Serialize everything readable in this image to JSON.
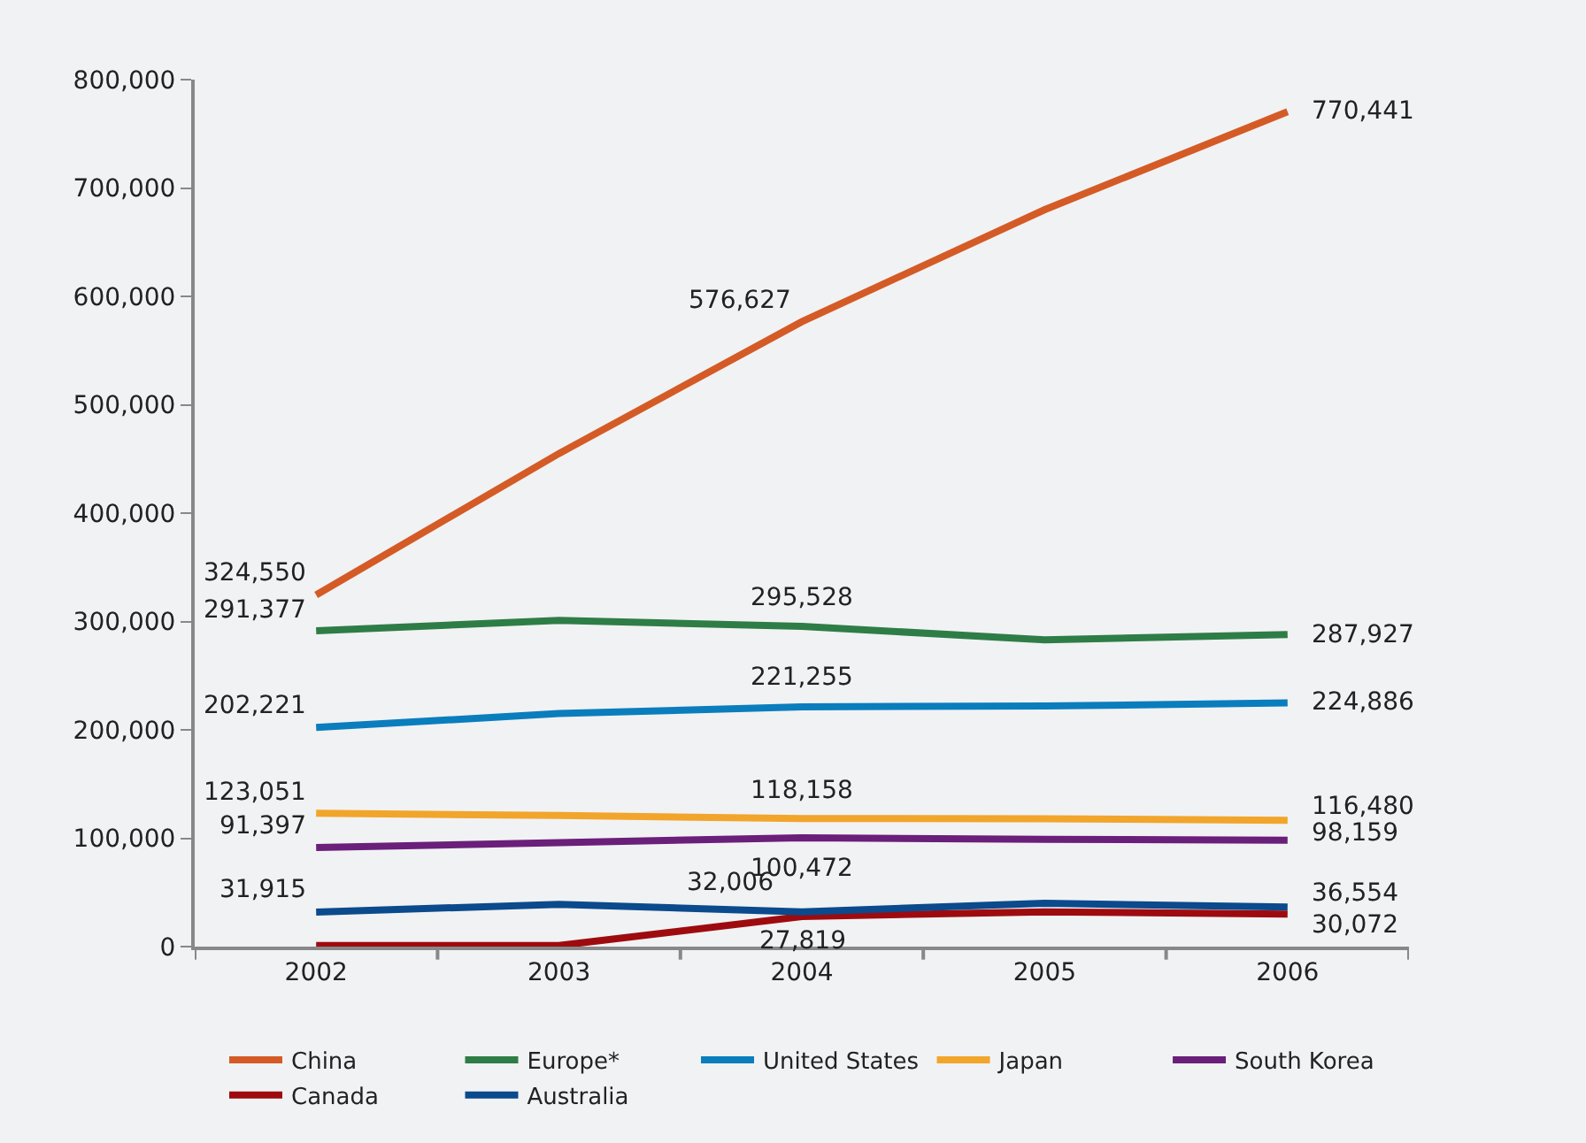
{
  "chart_data": {
    "type": "line",
    "categories": [
      "2002",
      "2003",
      "2004",
      "2005",
      "2006"
    ],
    "ylim": [
      0,
      800000
    ],
    "yticks": [
      {
        "value": 0,
        "label": "0"
      },
      {
        "value": 100000,
        "label": "100,000"
      },
      {
        "value": 200000,
        "label": "200,000"
      },
      {
        "value": 300000,
        "label": "300,000"
      },
      {
        "value": 400000,
        "label": "400,000"
      },
      {
        "value": 500000,
        "label": "500,000"
      },
      {
        "value": 600000,
        "label": "600,000"
      },
      {
        "value": 700000,
        "label": "700,000"
      },
      {
        "value": 800000,
        "label": "800,000"
      }
    ],
    "grid": false,
    "legend": "bottom",
    "marker": "none",
    "line_style": "solid",
    "series": [
      {
        "name": "China",
        "color": "#d45b26",
        "values": [
          324550,
          455000,
          576627,
          680000,
          770441
        ],
        "value_labels": [
          "324,550",
          null,
          "576,627",
          null,
          "770,441"
        ]
      },
      {
        "name": "Europe*",
        "color": "#2e7d46",
        "values": [
          291377,
          301000,
          295528,
          283000,
          287927
        ],
        "value_labels": [
          "291,377",
          null,
          "295,528",
          null,
          "287,927"
        ]
      },
      {
        "name": "United States",
        "color": "#0a7dbd",
        "values": [
          202221,
          215000,
          221255,
          222000,
          224886
        ],
        "value_labels": [
          "202,221",
          null,
          "221,255",
          null,
          "224,886"
        ]
      },
      {
        "name": "Japan",
        "color": "#f2a52b",
        "values": [
          123051,
          121000,
          118158,
          118000,
          116480
        ],
        "value_labels": [
          "123,051",
          null,
          "118,158",
          null,
          "116,480"
        ]
      },
      {
        "name": "South Korea",
        "color": "#6a1f7a",
        "values": [
          91397,
          96000,
          100472,
          99000,
          98159
        ],
        "value_labels": [
          "91,397",
          null,
          "100,472",
          null,
          "98,159"
        ]
      },
      {
        "name": "Canada",
        "color": "#9e0b0f",
        "values": [
          1000,
          1000,
          27819,
          32000,
          30072
        ],
        "value_labels": [
          null,
          null,
          "27,819",
          null,
          "30,072"
        ]
      },
      {
        "name": "Australia",
        "color": "#0b4a8c",
        "values": [
          31915,
          39000,
          32006,
          40000,
          36554
        ],
        "value_labels": [
          "31,915",
          null,
          "32,006",
          null,
          "36,554"
        ]
      }
    ]
  }
}
